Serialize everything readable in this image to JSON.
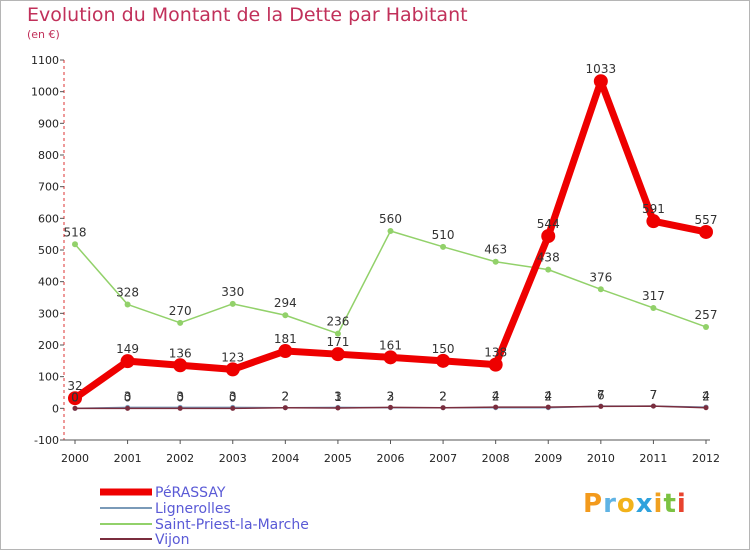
{
  "title": "Evolution du Montant de la Dette par Habitant",
  "subtitle": "(en €)",
  "logo": "Proxiti",
  "chart_data": {
    "type": "line",
    "title": "Evolution du Montant de la Dette par Habitant",
    "ylabel": "(en €)",
    "xlabel": "",
    "ylim": [
      -100,
      1100
    ],
    "yticks": [
      -100,
      0,
      100,
      200,
      300,
      400,
      500,
      600,
      700,
      800,
      900,
      1000,
      1100
    ],
    "grid": false,
    "legend_position": "bottom-left",
    "x": [
      "2000",
      "2001",
      "2002",
      "2003",
      "2004",
      "2005",
      "2006",
      "2007",
      "2008",
      "2009",
      "2010",
      "2011",
      "2012"
    ],
    "series": [
      {
        "name": "PéRASSAY",
        "color": "#ee0000",
        "values": [
          32,
          149,
          136,
          123,
          181,
          171,
          161,
          150,
          138,
          544,
          1033,
          591,
          557
        ]
      },
      {
        "name": "Lignerolles",
        "color": "#7a9ab8",
        "values": [
          0,
          3,
          3,
          3,
          2,
          3,
          2,
          2,
          2,
          2,
          7,
          7,
          4
        ]
      },
      {
        "name": "Saint-Priest-la-Marche",
        "color": "#92d16a",
        "values": [
          518,
          328,
          270,
          330,
          294,
          236,
          560,
          510,
          463,
          438,
          376,
          317,
          257
        ]
      },
      {
        "name": "Vijon",
        "color": "#7a2d3e",
        "values": [
          0,
          0,
          0,
          0,
          2,
          1,
          3,
          2,
          4,
          4,
          6,
          7,
          2
        ]
      }
    ]
  }
}
